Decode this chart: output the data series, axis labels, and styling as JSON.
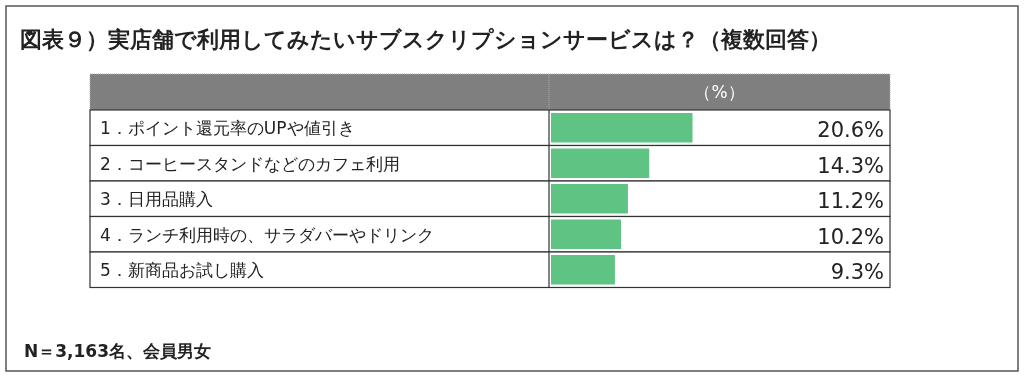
{
  "chart_data": {
    "type": "bar",
    "orientation": "horizontal",
    "title": "図表９）実店舗で利用してみたいサブスクリプションサービスは？（複数回答）",
    "xlabel": "（%）",
    "categories": [
      "1．ポイント還元率のUPや値引き",
      "2．コーヒースタンドなどのカフェ利用",
      "3．日用品購入",
      "4．ランチ利用時の、サラダバーやドリンク",
      "5．新商品お試し購入"
    ],
    "values": [
      20.6,
      14.3,
      11.2,
      10.2,
      9.3
    ],
    "value_labels": [
      "20.6%",
      "14.3%",
      "11.2%",
      "10.2%",
      "9.3%"
    ],
    "color": "#5fc383",
    "annotations": [
      "N＝3,163名、会員男女"
    ]
  }
}
